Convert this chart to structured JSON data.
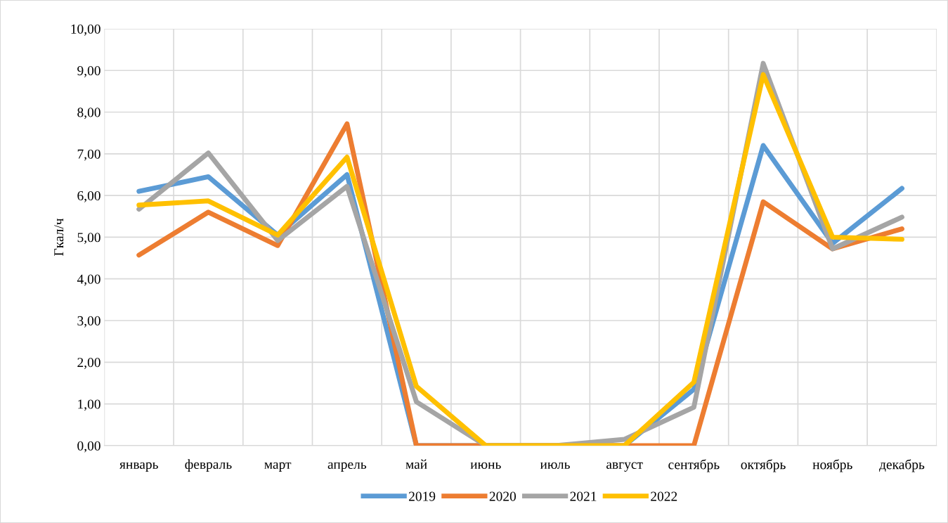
{
  "chart_data": {
    "type": "line",
    "ylabel": "Гкал/ч",
    "categories": [
      "январь",
      "февраль",
      "март",
      "апрель",
      "май",
      "июнь",
      "июль",
      "август",
      "сентябрь",
      "октябрь",
      "ноябрь",
      "декабрь"
    ],
    "series": [
      {
        "name": "2019",
        "color": "#5b9bd5",
        "values": [
          6.1,
          6.45,
          5.05,
          6.5,
          0,
          0,
          0,
          0,
          1.35,
          7.2,
          4.85,
          6.17
        ]
      },
      {
        "name": "2020",
        "color": "#ed7d31",
        "values": [
          4.57,
          5.6,
          4.8,
          7.72,
          0,
          0,
          0,
          0,
          0,
          5.85,
          4.72,
          5.2
        ]
      },
      {
        "name": "2021",
        "color": "#a5a5a5",
        "values": [
          5.67,
          7.02,
          4.92,
          6.22,
          1.05,
          0,
          0,
          0.15,
          0.92,
          9.17,
          4.72,
          5.48
        ]
      },
      {
        "name": "2022",
        "color": "#ffc000",
        "values": [
          5.77,
          5.87,
          5.05,
          6.92,
          1.42,
          0,
          0,
          0,
          1.52,
          8.9,
          5.0,
          4.95
        ]
      }
    ],
    "ylim": [
      0,
      10
    ],
    "yticks": [
      {
        "value": 0,
        "label": "0,00"
      },
      {
        "value": 1,
        "label": "1,00"
      },
      {
        "value": 2,
        "label": "2,00"
      },
      {
        "value": 3,
        "label": "3,00"
      },
      {
        "value": 4,
        "label": "4,00"
      },
      {
        "value": 5,
        "label": "5,00"
      },
      {
        "value": 6,
        "label": "6,00"
      },
      {
        "value": 7,
        "label": "7,00"
      },
      {
        "value": 8,
        "label": "8,00"
      },
      {
        "value": 9,
        "label": "9,00"
      },
      {
        "value": 10,
        "label": "10,00"
      }
    ],
    "grid": true,
    "legend": "bottom",
    "marker": "none",
    "line_style": "solid"
  }
}
